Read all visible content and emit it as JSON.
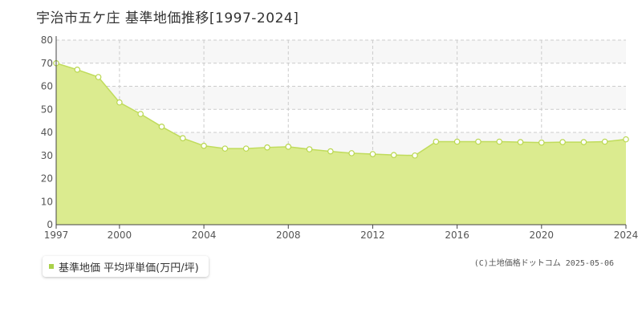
{
  "title": "宇治市五ケ庄 基準地価推移[1997-2024]",
  "credit": "(C)土地価格ドットコム 2025-05-06",
  "legend": {
    "label": "基準地価 平均坪単価(万円/坪)"
  },
  "colors": {
    "area_fill": "#dbeb8f",
    "line": "#c0dc5c",
    "marker_stroke": "#b9d74f",
    "legend_swatch": "#aad14a",
    "band": "#f7f7f7",
    "grid": "#cccccc",
    "axis": "#444444"
  },
  "chart_data": {
    "type": "area",
    "x": [
      1997,
      1998,
      1999,
      2000,
      2001,
      2002,
      2003,
      2004,
      2005,
      2006,
      2007,
      2008,
      2009,
      2010,
      2011,
      2012,
      2013,
      2014,
      2015,
      2016,
      2017,
      2018,
      2019,
      2020,
      2021,
      2022,
      2023,
      2024
    ],
    "series": [
      {
        "name": "基準地価 平均坪単価(万円/坪)",
        "values": [
          70.0,
          67.2,
          64.0,
          53.0,
          48.0,
          42.5,
          37.5,
          34.2,
          33.0,
          33.0,
          33.5,
          33.8,
          32.7,
          31.8,
          31.0,
          30.6,
          30.2,
          30.0,
          36.0,
          36.0,
          36.0,
          36.0,
          35.8,
          35.6,
          35.8,
          35.8,
          36.0,
          37.0
        ]
      }
    ],
    "xticks": [
      1997,
      2000,
      2004,
      2008,
      2012,
      2016,
      2020,
      2024
    ],
    "yticks": [
      0,
      10,
      20,
      30,
      40,
      50,
      60,
      70,
      80
    ],
    "xlim": [
      1997,
      2024
    ],
    "ylim": [
      0,
      80
    ],
    "grid": true,
    "legend_position": "bottom-left"
  }
}
